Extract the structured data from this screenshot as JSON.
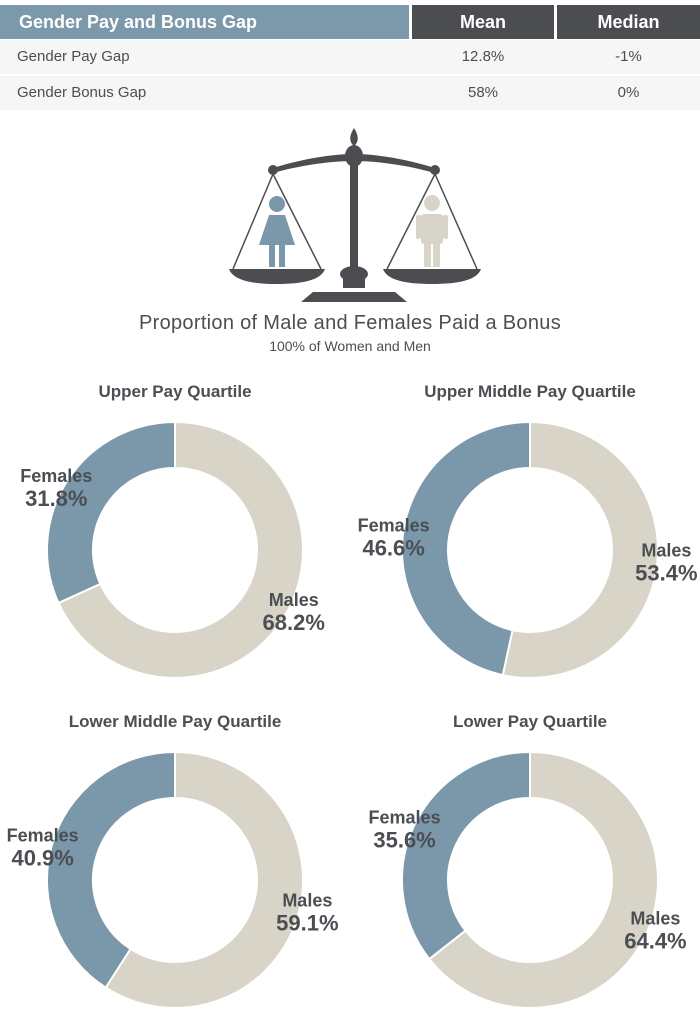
{
  "table": {
    "header": {
      "title": "Gender Pay and Bonus Gap",
      "mean": "Mean",
      "median": "Median"
    },
    "rows": [
      {
        "label": "Gender Pay Gap",
        "mean": "12.8%",
        "median": "-1%"
      },
      {
        "label": "Gender Bonus Gap",
        "mean": "58%",
        "median": "0%"
      }
    ]
  },
  "scale_icon": "balance-scale-icon",
  "proportion": {
    "title": "Proportion of Male and Females Paid a Bonus",
    "subtitle": "100% of Women and Men"
  },
  "colors": {
    "females": "#7b98ab",
    "males": "#d8d5c8",
    "header_accent": "#7c98ab",
    "header_dark": "#4b4d50",
    "text": "#4b4e52"
  },
  "chart_data": [
    {
      "type": "pie",
      "title": "Upper Pay Quartile",
      "categories": [
        "Females",
        "Males"
      ],
      "values": [
        31.8,
        68.2
      ],
      "labels": [
        "31.8%",
        "68.2%"
      ]
    },
    {
      "type": "pie",
      "title": "Upper Middle Pay Quartile",
      "categories": [
        "Females",
        "Males"
      ],
      "values": [
        46.6,
        53.4
      ],
      "labels": [
        "46.6%",
        "53.4%"
      ]
    },
    {
      "type": "pie",
      "title": "Lower Middle Pay Quartile",
      "categories": [
        "Females",
        "Males"
      ],
      "values": [
        40.9,
        59.1
      ],
      "labels": [
        "40.9%",
        "59.1%"
      ]
    },
    {
      "type": "pie",
      "title": "Lower Pay Quartile",
      "categories": [
        "Females",
        "Males"
      ],
      "values": [
        35.6,
        64.4
      ],
      "labels": [
        "35.6%",
        "64.4%"
      ]
    }
  ]
}
